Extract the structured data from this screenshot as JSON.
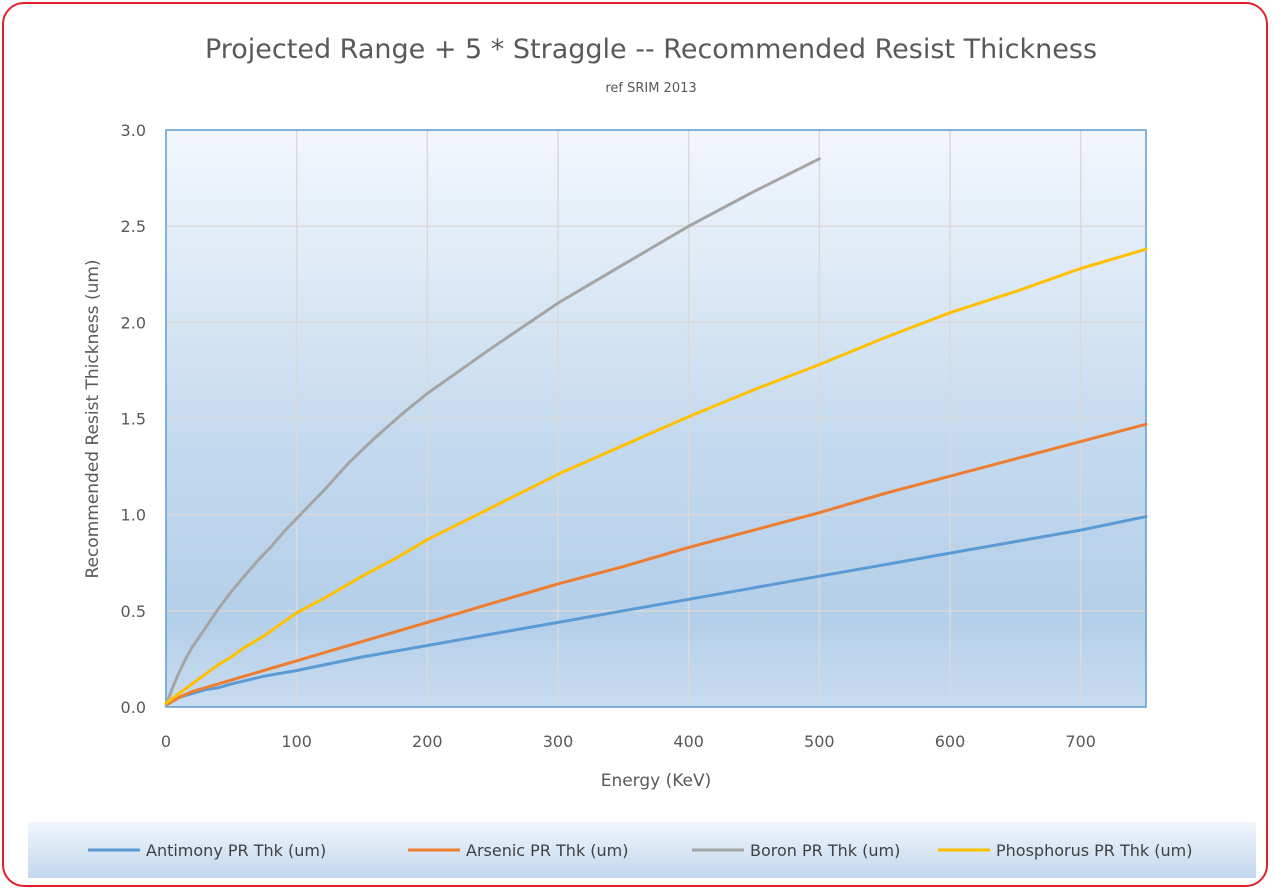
{
  "chart_data": {
    "type": "line",
    "title": "Projected Range + 5 * Straggle -- Recommended Resist Thickness",
    "subtitle": "ref SRIM 2013",
    "xlabel": "Energy (KeV)",
    "ylabel": "Recommended Resist Thickness (um)",
    "xlim": [
      0,
      750
    ],
    "ylim": [
      0,
      3.0
    ],
    "xticks": [
      0,
      100,
      200,
      300,
      400,
      500,
      600,
      700
    ],
    "xtick_labels": [
      "0",
      "100",
      "200",
      "300",
      "400",
      "500",
      "600",
      "700"
    ],
    "yticks": [
      0,
      0.5,
      1.0,
      1.5,
      2.0,
      2.5,
      3.0
    ],
    "ytick_labels": [
      "0.0",
      "0.5",
      "1.0",
      "1.5",
      "2.0",
      "2.5",
      "3.0"
    ],
    "grid": true,
    "legend_position": "bottom",
    "series": [
      {
        "name": "Antimony PR Thk (um)",
        "color": "#5b9bd5",
        "x": [
          0,
          10,
          20,
          30,
          40,
          50,
          75,
          100,
          150,
          200,
          225,
          250,
          300,
          350,
          400,
          450,
          500,
          550,
          600,
          650,
          700,
          750
        ],
        "y": [
          0.01,
          0.05,
          0.07,
          0.09,
          0.1,
          0.12,
          0.16,
          0.19,
          0.26,
          0.32,
          0.35,
          0.38,
          0.44,
          0.5,
          0.56,
          0.62,
          0.68,
          0.74,
          0.8,
          0.86,
          0.92,
          0.99
        ]
      },
      {
        "name": "Arsenic PR Thk (um)",
        "color": "#ed7d31",
        "x": [
          0,
          10,
          20,
          30,
          40,
          50,
          60,
          80,
          100,
          125,
          150,
          175,
          200,
          225,
          250,
          275,
          300,
          350,
          375,
          400,
          450,
          500,
          550,
          600,
          650,
          700,
          750
        ],
        "y": [
          0.01,
          0.05,
          0.08,
          0.1,
          0.12,
          0.14,
          0.16,
          0.2,
          0.24,
          0.29,
          0.34,
          0.39,
          0.44,
          0.49,
          0.54,
          0.59,
          0.64,
          0.73,
          0.78,
          0.83,
          0.92,
          1.01,
          1.11,
          1.2,
          1.29,
          1.38,
          1.47
        ]
      },
      {
        "name": "Boron PR Thk (um)",
        "color": "#a5a5a5",
        "x": [
          0,
          5,
          10,
          15,
          20,
          30,
          40,
          50,
          60,
          70,
          80,
          90,
          100,
          110,
          120,
          140,
          160,
          180,
          200,
          250,
          300,
          350,
          400,
          450,
          500
        ],
        "y": [
          0.01,
          0.1,
          0.18,
          0.25,
          0.31,
          0.41,
          0.51,
          0.6,
          0.68,
          0.76,
          0.83,
          0.91,
          0.98,
          1.05,
          1.12,
          1.27,
          1.4,
          1.52,
          1.63,
          1.87,
          2.1,
          2.3,
          2.5,
          2.68,
          2.85
        ]
      },
      {
        "name": "Phosphorus PR Thk (um)",
        "color": "#ffc000",
        "x": [
          0,
          10,
          20,
          30,
          40,
          50,
          60,
          75,
          100,
          125,
          150,
          175,
          200,
          250,
          300,
          350,
          400,
          450,
          500,
          550,
          600,
          650,
          700,
          750
        ],
        "y": [
          0.02,
          0.07,
          0.12,
          0.17,
          0.22,
          0.26,
          0.31,
          0.37,
          0.49,
          0.58,
          0.68,
          0.77,
          0.87,
          1.04,
          1.21,
          1.36,
          1.51,
          1.65,
          1.78,
          1.92,
          2.05,
          2.16,
          2.28,
          2.38
        ]
      }
    ]
  }
}
